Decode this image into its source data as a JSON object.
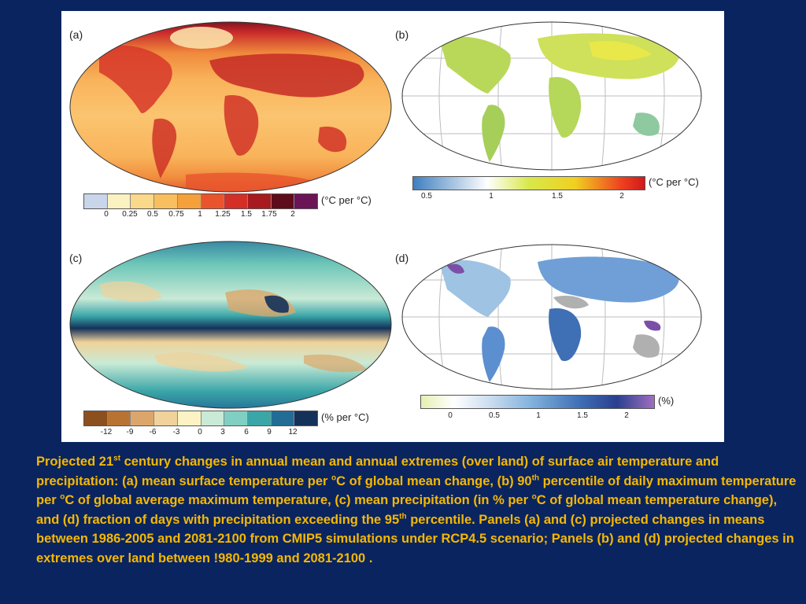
{
  "panels": {
    "a": {
      "label": "(a)",
      "unit": "(°C per °C)",
      "ticks": [
        "0",
        "0.25",
        "0.5",
        "0.75",
        "1",
        "1.25",
        "1.5",
        "1.75",
        "2"
      ],
      "colors": [
        "#c9d6ea",
        "#fbf2c2",
        "#fbd98a",
        "#f9bf5e",
        "#f5a03b",
        "#e9542d",
        "#d42f27",
        "#a71a1f",
        "#5e0c1a",
        "#6b1456"
      ]
    },
    "b": {
      "label": "(b)",
      "unit": "(°C per °C)",
      "ticks": [
        "0.5",
        "1",
        "1.5",
        "2"
      ]
    },
    "c": {
      "label": "(c)",
      "unit": "(% per °C)",
      "ticks": [
        "-12",
        "-9",
        "-6",
        "-3",
        "0",
        "3",
        "6",
        "9",
        "12"
      ],
      "colors": [
        "#8c4f1f",
        "#b87333",
        "#dca66a",
        "#f0d29a",
        "#fbf3c4",
        "#c9ead6",
        "#7fcfc2",
        "#3aa6a8",
        "#226c95",
        "#14315a"
      ]
    },
    "d": {
      "label": "(d)",
      "unit": "(%)",
      "ticks": [
        "0",
        "0.5",
        "1",
        "1.5",
        "2"
      ]
    }
  },
  "caption": {
    "p1": "Projected 21",
    "sup1": "st",
    "p2": " century changes in annual mean and annual extremes (over land) of surface air temperature and precipitation: (a) mean surface temperature per ",
    "sup2": "o",
    "p3": "C of global mean change, (b) 90",
    "sup3": "th",
    "p4": " percentile of daily maximum temperature per ",
    "sup4": "o",
    "p5": "C of global average maximum temperature, (c) mean precipitation (in % per ",
    "sup5": "o",
    "p6": "C of global mean temperature change), and (d) fraction of days with precipitation exceeding the 95",
    "sup6": "th",
    "p7": " percentile. Panels (a) and (c) projected changes in means between 1986-2005 and 2081-2100 from CMIP5 simulations under RCP4.5 scenario; Panels (b) and (d) projected changes in extremes over land between !980-1999 and 2081-2100 ."
  }
}
